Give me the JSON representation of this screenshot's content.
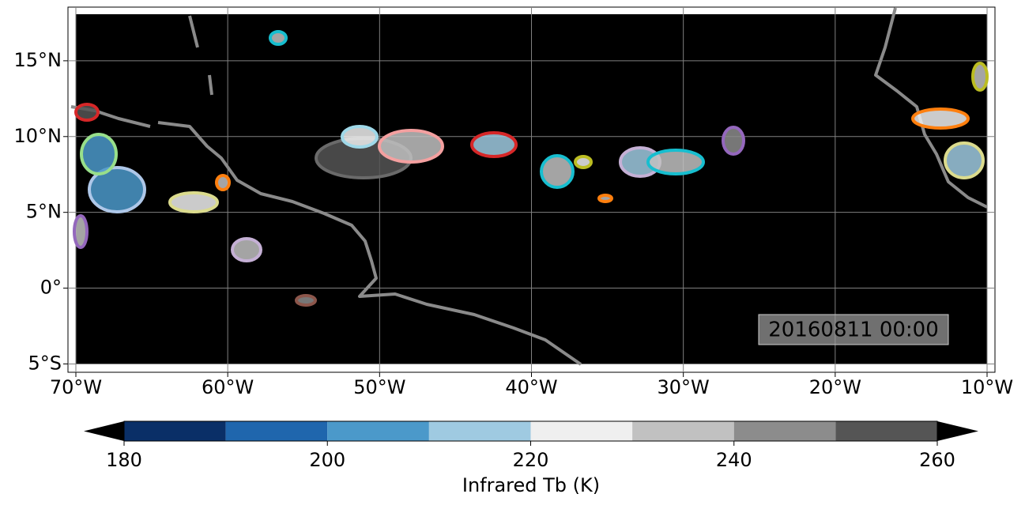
{
  "map": {
    "xlim": [
      -70.52,
      -9.48
    ],
    "ylim": [
      -5.55,
      18.54
    ],
    "xticks": [
      {
        "value": -70,
        "label": "70°W"
      },
      {
        "value": -60,
        "label": "60°W"
      },
      {
        "value": -50,
        "label": "50°W"
      },
      {
        "value": -40,
        "label": "40°W"
      },
      {
        "value": -30,
        "label": "30°W"
      },
      {
        "value": -20,
        "label": "20°W"
      },
      {
        "value": -10,
        "label": "10°W"
      }
    ],
    "yticks": [
      {
        "value": -5,
        "label": "5°S"
      },
      {
        "value": 0,
        "label": "0°"
      },
      {
        "value": 5,
        "label": "5°N"
      },
      {
        "value": 10,
        "label": "10°N"
      },
      {
        "value": 15,
        "label": "15°N"
      }
    ],
    "grid": true,
    "timestamp": "20160811 00:00",
    "colorbar": {
      "label": "Infrared Tb (K)",
      "bins": [
        180,
        190,
        200,
        210,
        220,
        230,
        240,
        250,
        260
      ],
      "colors": [
        "#0a2f67",
        "#1f66ad",
        "#4b99ca",
        "#9fcae1",
        "#efefef",
        "#c1c1c1",
        "#8c8c8c",
        "#555555"
      ],
      "ticks": [
        180,
        200,
        220,
        240,
        260
      ]
    }
  }
}
